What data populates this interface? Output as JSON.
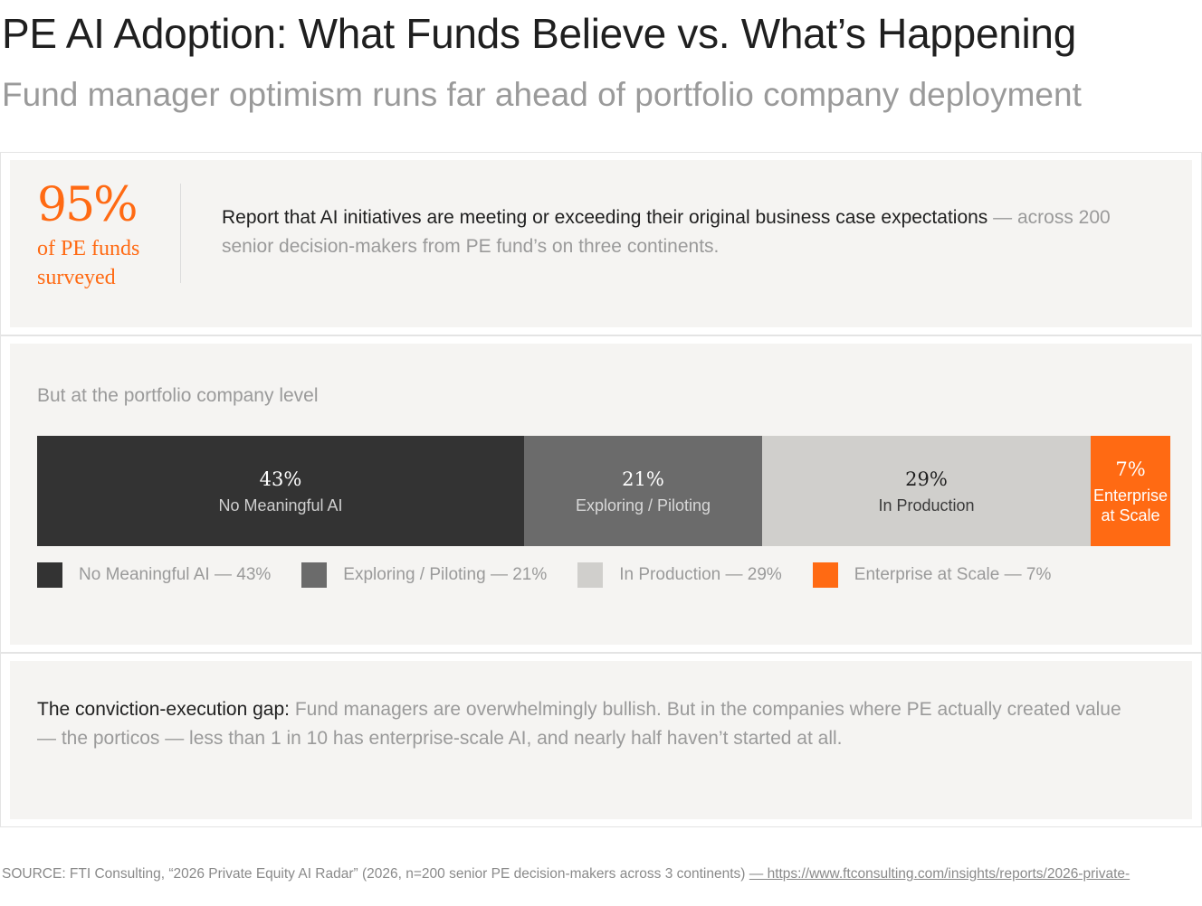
{
  "header": {
    "title": "PE AI Adoption: What Funds Believe vs. What’s Happening",
    "subtitle": "Fund manager optimism runs far ahead of portfolio company deployment"
  },
  "stat": {
    "value": "95%",
    "label": "of PE funds surveyed",
    "text_main": "Report that AI initiatives are meeting or exceeding their original business case expectations",
    "text_sep": " — ",
    "text_muted": "across 200 senior decision-makers from PE fund’s on three continents."
  },
  "chart_data": {
    "type": "bar",
    "orientation": "horizontal-stacked",
    "title": "But at the portfolio company level",
    "categories": [
      "No Meaningful AI",
      "Exploring / Piloting",
      "In Production",
      "Enterprise at Scale"
    ],
    "values": [
      43,
      21,
      29,
      7
    ],
    "value_labels": [
      "43%",
      "21%",
      "29%",
      "7%"
    ],
    "segment_labels": [
      "No Meaningful AI",
      "Exploring / Piloting",
      "In Production",
      "Enterprise\nat Scale"
    ],
    "colors": [
      "#333333",
      "#6b6b6b",
      "#d0cfcc",
      "#ff6a13"
    ],
    "label_colors": [
      "#ffffff",
      "#ffffff",
      "#1f1f1f",
      "#ffffff"
    ],
    "name_colors": [
      "#cfcfcf",
      "#d8d8d8",
      "#3a3a3a",
      "#ffffff"
    ],
    "legend": [
      "No Meaningful AI — 43%",
      "Exploring / Piloting — 21%",
      "In Production — 29%",
      "Enterprise at Scale — 7%"
    ],
    "legend_position": "bottom-left"
  },
  "takeaway": {
    "lead": "The conviction-execution gap:",
    "text": " Fund managers are overwhelmingly bullish. But in the companies where PE actually created value — the porticos — less than 1 in 10 has enterprise-scale AI, and nearly half haven’t started at all."
  },
  "source": {
    "text": "SOURCE: FTI Consulting, “2026 Private Equity AI Radar” (2026, n=200 senior PE decision-makers across 3 continents) ",
    "link": "— https://www.ftconsulting.com/insights/reports/2026-private-"
  }
}
